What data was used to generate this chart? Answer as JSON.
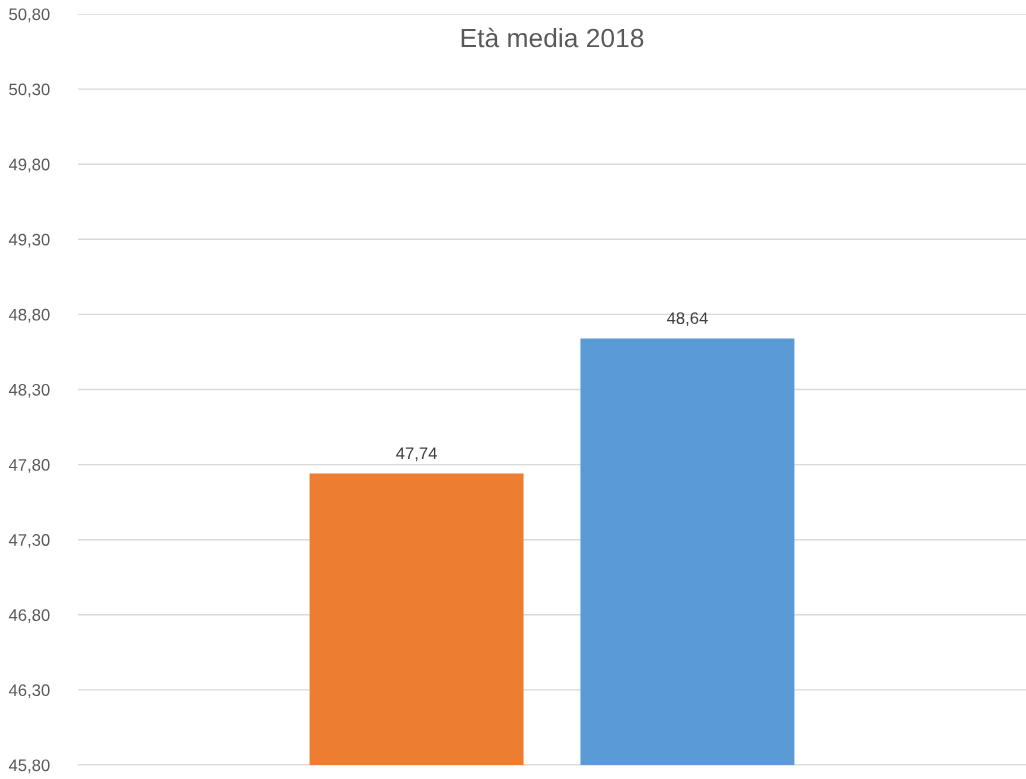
{
  "chart_data": {
    "type": "bar",
    "title": "Età media 2018",
    "categories": [
      null,
      null
    ],
    "values": [
      47.74,
      48.64
    ],
    "colors": [
      "#ed7d31",
      "#5b9bd5"
    ],
    "value_labels": [
      "47,74",
      "48,64"
    ],
    "ylim": [
      45.8,
      50.8
    ],
    "yticks": [
      {
        "value": 45.8,
        "label": "45,80"
      },
      {
        "value": 46.3,
        "label": "46,30"
      },
      {
        "value": 46.8,
        "label": "46,80"
      },
      {
        "value": 47.3,
        "label": "47,30"
      },
      {
        "value": 47.8,
        "label": "47,80"
      },
      {
        "value": 48.3,
        "label": "48,30"
      },
      {
        "value": 48.8,
        "label": "48,80"
      },
      {
        "value": 49.3,
        "label": "49,30"
      },
      {
        "value": 49.8,
        "label": "49,80"
      },
      {
        "value": 50.3,
        "label": "50,30"
      },
      {
        "value": 50.8,
        "label": "50,80"
      }
    ],
    "grid": "y"
  }
}
